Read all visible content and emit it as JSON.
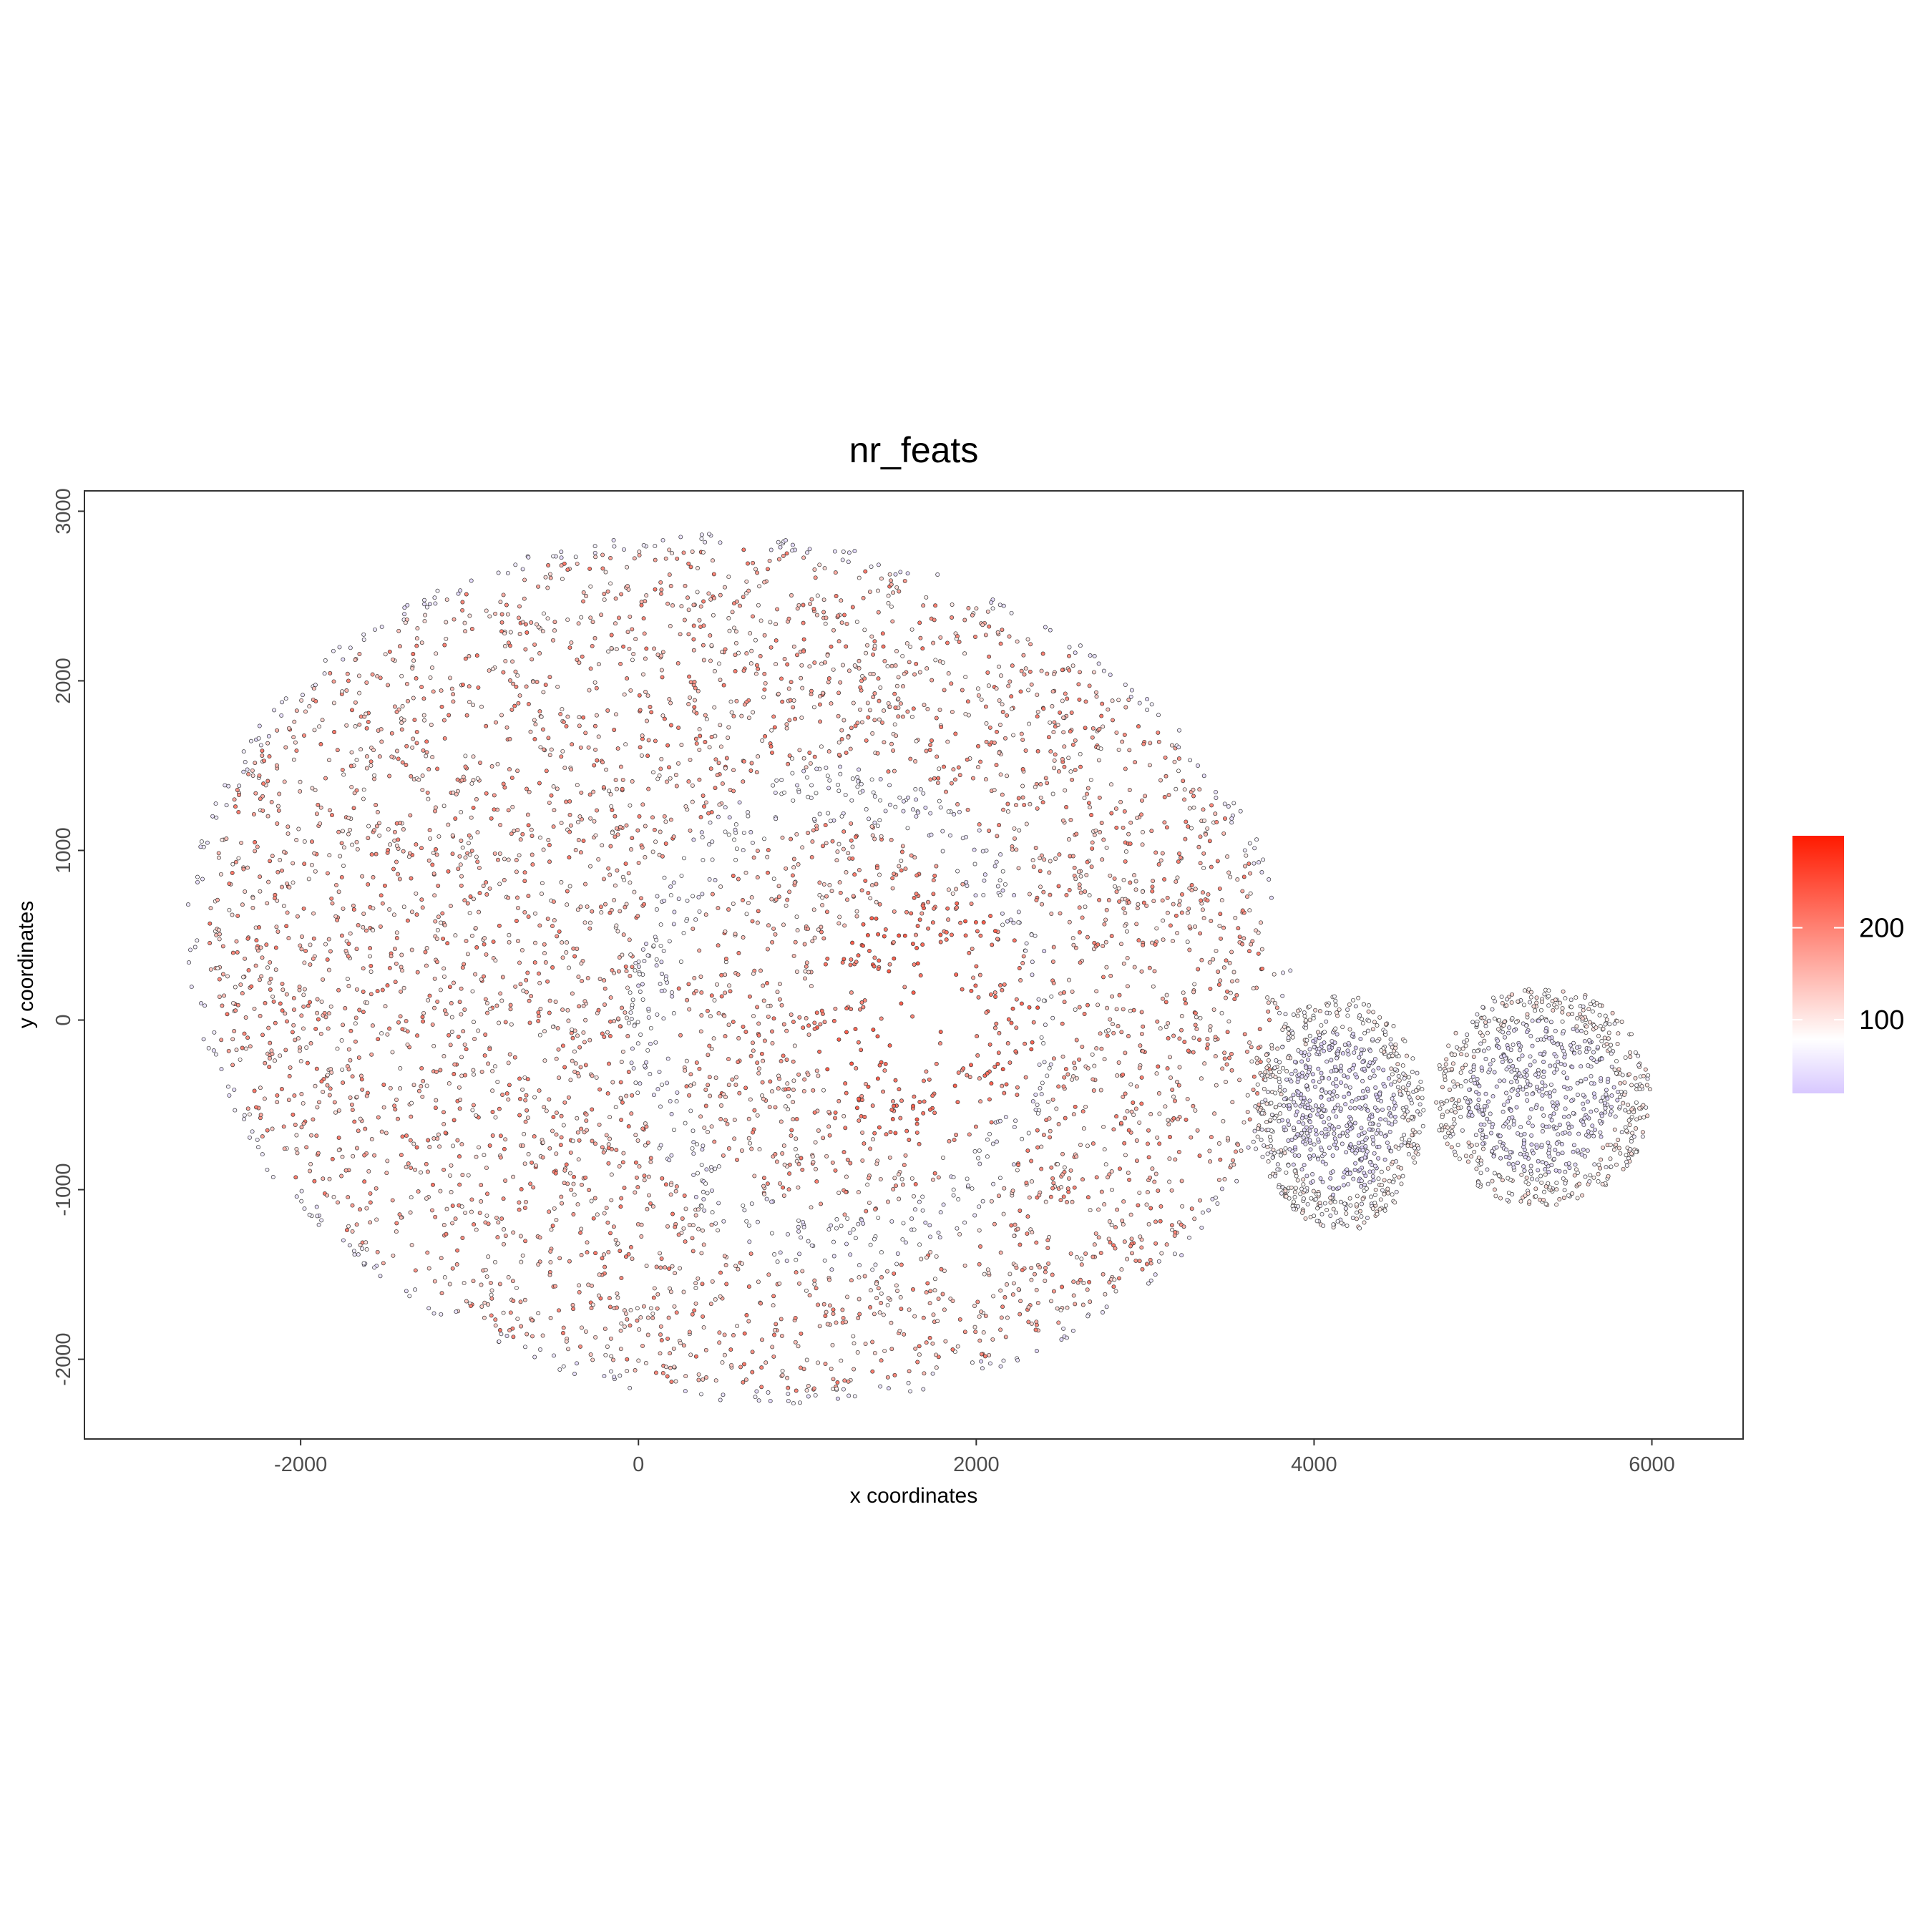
{
  "chart_data": {
    "type": "scatter",
    "title": "nr_feats",
    "xlabel": "x coordinates",
    "ylabel": "y coordinates",
    "xlim": [
      -3280,
      6540
    ],
    "ylim": [
      -2470,
      3120
    ],
    "x_ticks": [
      -2000,
      0,
      2000,
      4000,
      6000
    ],
    "y_ticks": [
      -2000,
      -1000,
      0,
      1000,
      2000,
      3000
    ],
    "x_tick_labels": [
      "-2000",
      "0",
      "2000",
      "4000",
      "6000"
    ],
    "y_tick_labels": [
      "-2000",
      "-1000",
      "0",
      "1000",
      "2000",
      "3000"
    ],
    "grid": false,
    "legend_position": "right",
    "color_scale": {
      "low_color": "#d8c8ff",
      "mid_color": "#ffffff",
      "high_color": "#ff1a00",
      "midpoint": 80,
      "range": [
        20,
        300
      ],
      "ticks": [
        100,
        200
      ],
      "tick_labels": [
        "100",
        "200"
      ]
    },
    "point_outline_color": "#333333",
    "regions": [
      {
        "shape": "ellipse",
        "cx": 600,
        "cy": 300,
        "rx": 3300,
        "ry": 2550,
        "rotation_deg": -8,
        "mean_value": 150
      },
      {
        "shape": "ring",
        "cx": 1700,
        "cy": 0,
        "inner_rx": 280,
        "inner_ry": 420,
        "outer_rx": 900,
        "outer_ry": 1000,
        "mean_value": 200
      },
      {
        "shape": "band",
        "cx": 1200,
        "cy": 0,
        "rx": 1100,
        "ry": 1300,
        "mean_value": 60
      },
      {
        "shape": "ellipse",
        "cx": 4150,
        "cy": -550,
        "rx": 500,
        "ry": 700,
        "mean_value": 55
      },
      {
        "shape": "ellipse",
        "cx": 5350,
        "cy": -450,
        "rx": 650,
        "ry": 650,
        "mean_value": 60
      }
    ]
  }
}
